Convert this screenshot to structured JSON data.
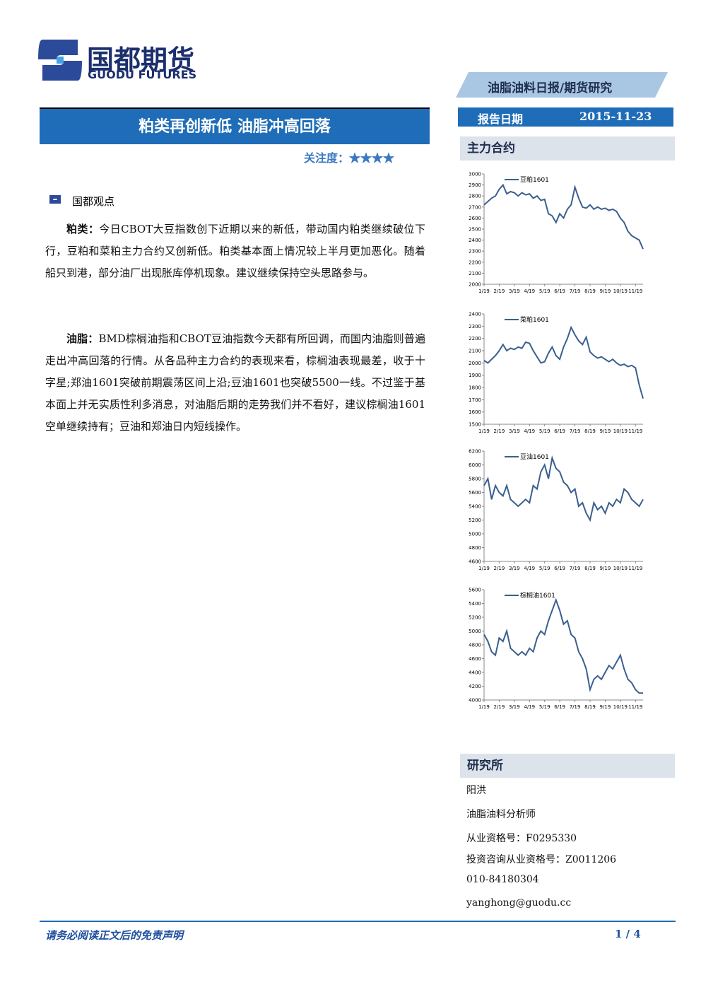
{
  "header": {
    "logo_cn": "国都期货",
    "logo_en": "GUODU FUTURES",
    "banner": "油脂油料日报/期货研究",
    "title": "粕类再创新低 油脂冲高回落",
    "date_label": "报告日期",
    "date": "2015-11-23",
    "attention": "关注度：★★★★"
  },
  "section": {
    "heading": "国都观点",
    "paragraphs": [
      {
        "label": "粕类：",
        "text": "今日CBOT大豆指数创下近期以来的新低，带动国内粕类继续破位下行，豆粕和菜粕主力合约又创新低。粕类基本面上情况较上半月更加恶化。随着船只到港，部分油厂出现胀库停机现象。建议继续保持空头思路参与。"
      },
      {
        "label": "油脂：",
        "text": "BMD棕榈油指和CBOT豆油指数今天都有所回调，而国内油脂则普遍走出冲高回落的行情。从各品种主力合约的表现来看，棕榈油表现最差，收于十字星;郑油1601突破前期震荡区间上沿;豆油1601也突破5500一线。不过鉴于基本面上并无实质性利多消息，对油脂后期的走势我们并不看好，建议棕榈油1601空单继续持有；豆油和郑油日内短线操作。"
      }
    ]
  },
  "sidebar": {
    "charts_heading": "主力合约",
    "institute_heading": "研究所",
    "lines": [
      "阳洪",
      "油脂油料分析师",
      "从业资格号：F0295330",
      "投资咨询从业资格号：Z0011206",
      "010-84180304",
      "yanghong@guodu.cc"
    ]
  },
  "footer": {
    "disclaimer": "请务必阅读正文后的免责声明",
    "page": "1 / 4"
  },
  "chart_data": [
    {
      "type": "line",
      "categories": [
        "1/19",
        null,
        null,
        null,
        "2/19",
        null,
        null,
        null,
        "3/19",
        null,
        null,
        null,
        "4/19",
        null,
        null,
        null,
        "5/19",
        null,
        null,
        null,
        "6/19",
        null,
        null,
        null,
        "7/19",
        null,
        null,
        null,
        "8/19",
        null,
        null,
        null,
        "9/19",
        null,
        null,
        null,
        "10/19",
        null,
        null,
        null,
        "11/19",
        null,
        null
      ],
      "ylim": [
        2000,
        3000
      ],
      "yticks": [
        2000,
        2100,
        2200,
        2300,
        2400,
        2500,
        2600,
        2700,
        2800,
        2900,
        3000
      ],
      "series": [
        {
          "name": "豆粕1601",
          "color": "#3a5f8f",
          "values": [
            2720,
            2750,
            2780,
            2800,
            2860,
            2900,
            2820,
            2840,
            2830,
            2800,
            2830,
            2810,
            2820,
            2780,
            2800,
            2760,
            2770,
            2640,
            2620,
            2560,
            2640,
            2600,
            2680,
            2720,
            2880,
            2780,
            2700,
            2690,
            2720,
            2680,
            2700,
            2680,
            2690,
            2670,
            2680,
            2660,
            2600,
            2560,
            2480,
            2440,
            2420,
            2400,
            2320
          ]
        }
      ]
    },
    {
      "type": "line",
      "categories": [
        "1/19",
        null,
        null,
        null,
        "2/19",
        null,
        null,
        null,
        "3/19",
        null,
        null,
        null,
        "4/19",
        null,
        null,
        null,
        "5/19",
        null,
        null,
        null,
        "6/19",
        null,
        null,
        null,
        "7/19",
        null,
        null,
        null,
        "8/19",
        null,
        null,
        null,
        "9/19",
        null,
        null,
        null,
        "10/19",
        null,
        null,
        null,
        "11/19",
        null,
        null
      ],
      "ylim": [
        1500,
        2400
      ],
      "yticks": [
        1500,
        1600,
        1700,
        1800,
        1900,
        2000,
        2100,
        2200,
        2300,
        2400
      ],
      "series": [
        {
          "name": "菜粕1601",
          "color": "#3a5f8f",
          "values": [
            2020,
            2000,
            2030,
            2060,
            2100,
            2150,
            2100,
            2120,
            2110,
            2130,
            2120,
            2170,
            2160,
            2100,
            2050,
            2000,
            2010,
            2080,
            2130,
            2060,
            2030,
            2130,
            2200,
            2290,
            2230,
            2180,
            2150,
            2210,
            2090,
            2060,
            2040,
            2050,
            2030,
            2010,
            2030,
            2000,
            1980,
            1990,
            1970,
            1980,
            1960,
            1820,
            1710
          ]
        }
      ]
    },
    {
      "type": "line",
      "categories": [
        "1/19",
        null,
        null,
        null,
        "2/19",
        null,
        null,
        null,
        "3/19",
        null,
        null,
        null,
        "4/19",
        null,
        null,
        null,
        "5/19",
        null,
        null,
        null,
        "6/19",
        null,
        null,
        null,
        "7/19",
        null,
        null,
        null,
        "8/19",
        null,
        null,
        null,
        "9/19",
        null,
        null,
        null,
        "10/19",
        null,
        null,
        null,
        "11/19",
        null,
        null
      ],
      "ylim": [
        4600,
        6200
      ],
      "yticks": [
        4600,
        4800,
        5000,
        5200,
        5400,
        5600,
        5800,
        6000,
        6200
      ],
      "series": [
        {
          "name": "豆油1601",
          "color": "#3a5f8f",
          "values": [
            5700,
            5800,
            5500,
            5700,
            5600,
            5550,
            5700,
            5500,
            5450,
            5400,
            5450,
            5500,
            5450,
            5700,
            5650,
            5900,
            6000,
            5800,
            6100,
            5950,
            5900,
            5750,
            5700,
            5600,
            5650,
            5400,
            5450,
            5300,
            5200,
            5450,
            5350,
            5400,
            5300,
            5450,
            5400,
            5500,
            5450,
            5650,
            5600,
            5500,
            5450,
            5400,
            5500
          ]
        }
      ]
    },
    {
      "type": "line",
      "categories": [
        "1/19",
        null,
        null,
        null,
        "2/19",
        null,
        null,
        null,
        "3/19",
        null,
        null,
        null,
        "4/19",
        null,
        null,
        null,
        "5/19",
        null,
        null,
        null,
        "6/19",
        null,
        null,
        null,
        "7/19",
        null,
        null,
        null,
        "8/19",
        null,
        null,
        null,
        "9/19",
        null,
        null,
        null,
        "10/19",
        null,
        null,
        null,
        "11/19",
        null,
        null
      ],
      "ylim": [
        4000,
        5600
      ],
      "yticks": [
        4000,
        4200,
        4400,
        4600,
        4800,
        5000,
        5200,
        5400,
        5600
      ],
      "series": [
        {
          "name": "棕榈油1601",
          "color": "#3a5f8f",
          "values": [
            4950,
            4850,
            4700,
            4650,
            4900,
            4850,
            5000,
            4750,
            4700,
            4650,
            4700,
            4650,
            4750,
            4700,
            4900,
            5000,
            4950,
            5150,
            5300,
            5450,
            5300,
            5100,
            5150,
            4950,
            4900,
            4700,
            4600,
            4450,
            4150,
            4300,
            4350,
            4300,
            4400,
            4500,
            4450,
            4550,
            4650,
            4450,
            4300,
            4250,
            4150,
            4100,
            4100
          ]
        }
      ]
    }
  ]
}
